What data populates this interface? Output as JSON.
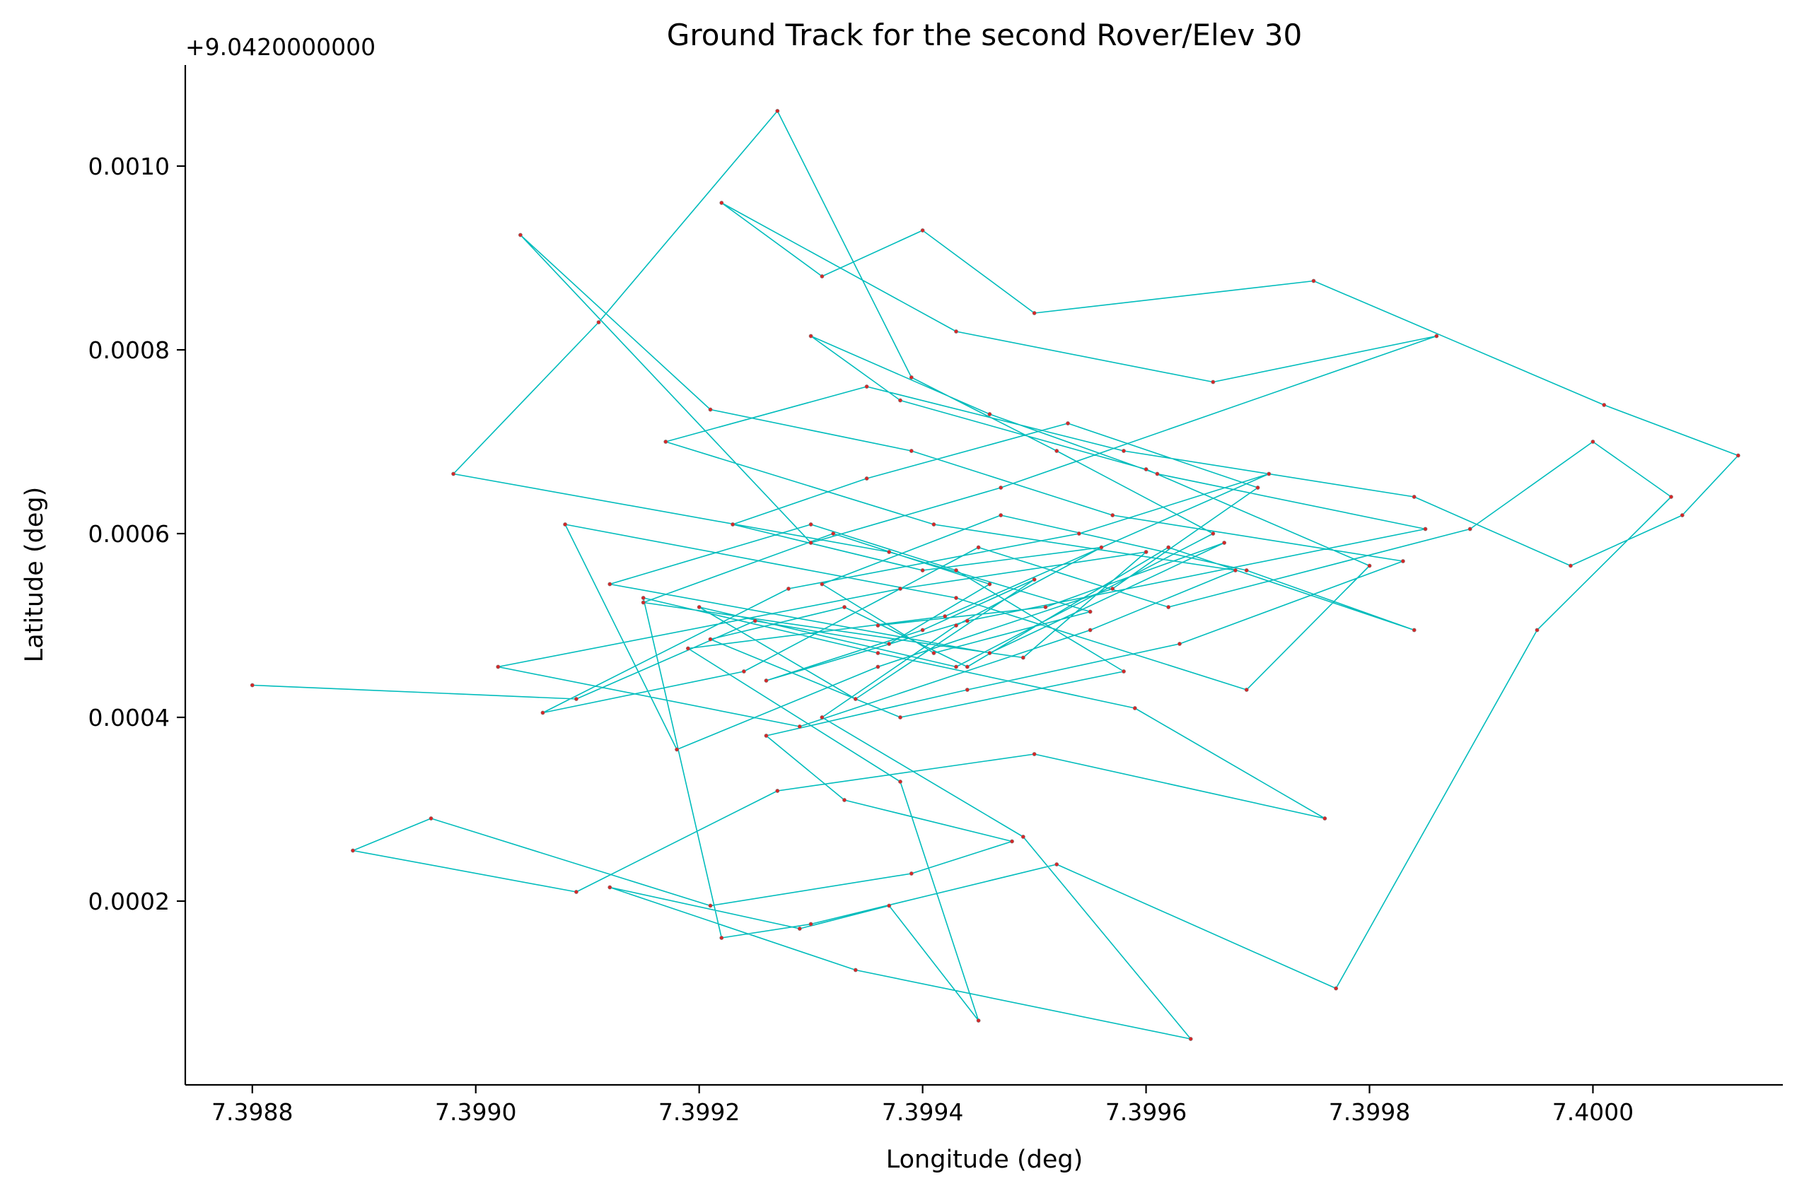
{
  "chart_data": {
    "type": "line",
    "title": "Ground Track for the second Rover/Elev 30",
    "xlabel": "Longitude (deg)",
    "ylabel": "Latitude (deg)",
    "y_offset_label": "+9.0420000000",
    "xlim": [
      7.39874,
      7.40017
    ],
    "ylim": [
      0.0,
      0.00111
    ],
    "x_ticks": [
      7.3988,
      7.399,
      7.3992,
      7.3994,
      7.3996,
      7.3998,
      7.4
    ],
    "x_tick_labels": [
      "7.3988",
      "7.3990",
      "7.3992",
      "7.3994",
      "7.3996",
      "7.3998",
      "7.4000"
    ],
    "y_ticks": [
      0.0002,
      0.0004,
      0.0006,
      0.0008,
      0.001
    ],
    "y_tick_labels": [
      "0.0002",
      "0.0004",
      "0.0006",
      "0.0008",
      "0.0010"
    ],
    "grid": false,
    "line_color": "#00bcbc",
    "marker_color": "#d62728",
    "series": [
      {
        "x": [
          7.3988,
          7.39909,
          7.39925,
          7.39937,
          7.39946,
          7.39932,
          7.39915,
          7.39949,
          7.3996,
          7.39938,
          7.39902,
          7.39929,
          7.39955,
          7.39968,
          7.39941,
          7.39917,
          7.39935,
          7.39958,
          7.39984,
          7.39998,
          7.40008,
          7.40013,
          7.40001,
          7.39975,
          7.3995,
          7.3994,
          7.39931,
          7.39922,
          7.39943,
          7.39966,
          7.39986,
          7.39947,
          7.3993,
          7.39904,
          7.39921,
          7.39939,
          7.39957,
          7.39983,
          7.39963,
          7.39944,
          7.39926,
          7.39933,
          7.39948,
          7.39939,
          7.39921,
          7.39896,
          7.39889,
          7.39909,
          7.39927,
          7.3995,
          7.39976,
          7.39959,
          7.39936,
          7.39915,
          7.39922,
          7.3993,
          7.39952,
          7.39977,
          7.39995,
          7.40007,
          7.4,
          7.39989,
          7.39962,
          7.39945,
          7.39924,
          7.39906,
          7.39928,
          7.39954,
          7.39971,
          7.39942,
          7.39919,
          7.39938,
          7.39945,
          7.39937,
          7.39929,
          7.39912,
          7.39934,
          7.39964,
          7.39949,
          7.39931,
          7.39943,
          7.39956,
          7.3994,
          7.39923,
          7.39935,
          7.39953,
          7.3997,
          7.39957,
          7.39936,
          7.39918,
          7.39908,
          7.39943,
          7.39969,
          7.3998,
          7.3996,
          7.39938,
          7.3993,
          7.39946,
          7.39961,
          7.39985,
          7.39944,
          7.39926,
          7.3994,
          7.3995,
          7.39934,
          7.3992,
          7.39943,
          7.39966,
          7.39952,
          7.39939,
          7.39927,
          7.39911,
          7.39898,
          7.39937,
          7.39955,
          7.39941,
          7.39931,
          7.39947,
          7.39969,
          7.39984,
          7.39962,
          7.39944,
          7.39933,
          7.39921,
          7.39938,
          7.39958,
          7.39943,
          7.3993,
          7.39912,
          7.39946,
          7.39967,
          7.39951,
          7.39936
        ],
        "y": [
          0.000435,
          0.00042,
          0.000505,
          0.00048,
          0.000545,
          0.0006,
          0.000525,
          0.000465,
          0.00058,
          0.00054,
          0.000455,
          0.00039,
          0.000495,
          0.00056,
          0.00061,
          0.0007,
          0.00076,
          0.00069,
          0.00064,
          0.000565,
          0.00062,
          0.000685,
          0.00074,
          0.000875,
          0.00084,
          0.00093,
          0.00088,
          0.00096,
          0.00082,
          0.000765,
          0.000815,
          0.00065,
          0.00059,
          0.000925,
          0.000735,
          0.00069,
          0.00062,
          0.00057,
          0.00048,
          0.00043,
          0.00038,
          0.00031,
          0.000265,
          0.00023,
          0.000195,
          0.00029,
          0.000255,
          0.00021,
          0.00032,
          0.00036,
          0.00029,
          0.00041,
          0.00047,
          0.00053,
          0.00016,
          0.000175,
          0.00024,
          0.000105,
          0.000495,
          0.00064,
          0.0007,
          0.000605,
          0.00052,
          0.000585,
          0.00045,
          0.000405,
          0.00054,
          0.0006,
          0.000665,
          0.00051,
          0.000475,
          0.00033,
          7e-05,
          0.000195,
          0.00017,
          0.000215,
          0.000125,
          5e-05,
          0.00027,
          0.0004,
          0.0005,
          0.000585,
          0.00056,
          0.00061,
          0.00066,
          0.00072,
          0.00065,
          0.00054,
          0.000455,
          0.000365,
          0.00061,
          0.00053,
          0.00043,
          0.000565,
          0.00067,
          0.000745,
          0.000815,
          0.00073,
          0.000665,
          0.000605,
          0.000505,
          0.00044,
          0.000495,
          0.00055,
          0.00042,
          0.00052,
          0.000455,
          0.0006,
          0.00069,
          0.00077,
          0.00106,
          0.00083,
          0.000665,
          0.00058,
          0.000515,
          0.00047,
          0.000545,
          0.00062,
          0.00056,
          0.000495,
          0.000585,
          0.000455,
          0.00052,
          0.000485,
          0.0004,
          0.00045,
          0.00056,
          0.00061,
          0.000545,
          0.00047,
          0.00059,
          0.00052,
          0.0005
        ]
      }
    ]
  }
}
